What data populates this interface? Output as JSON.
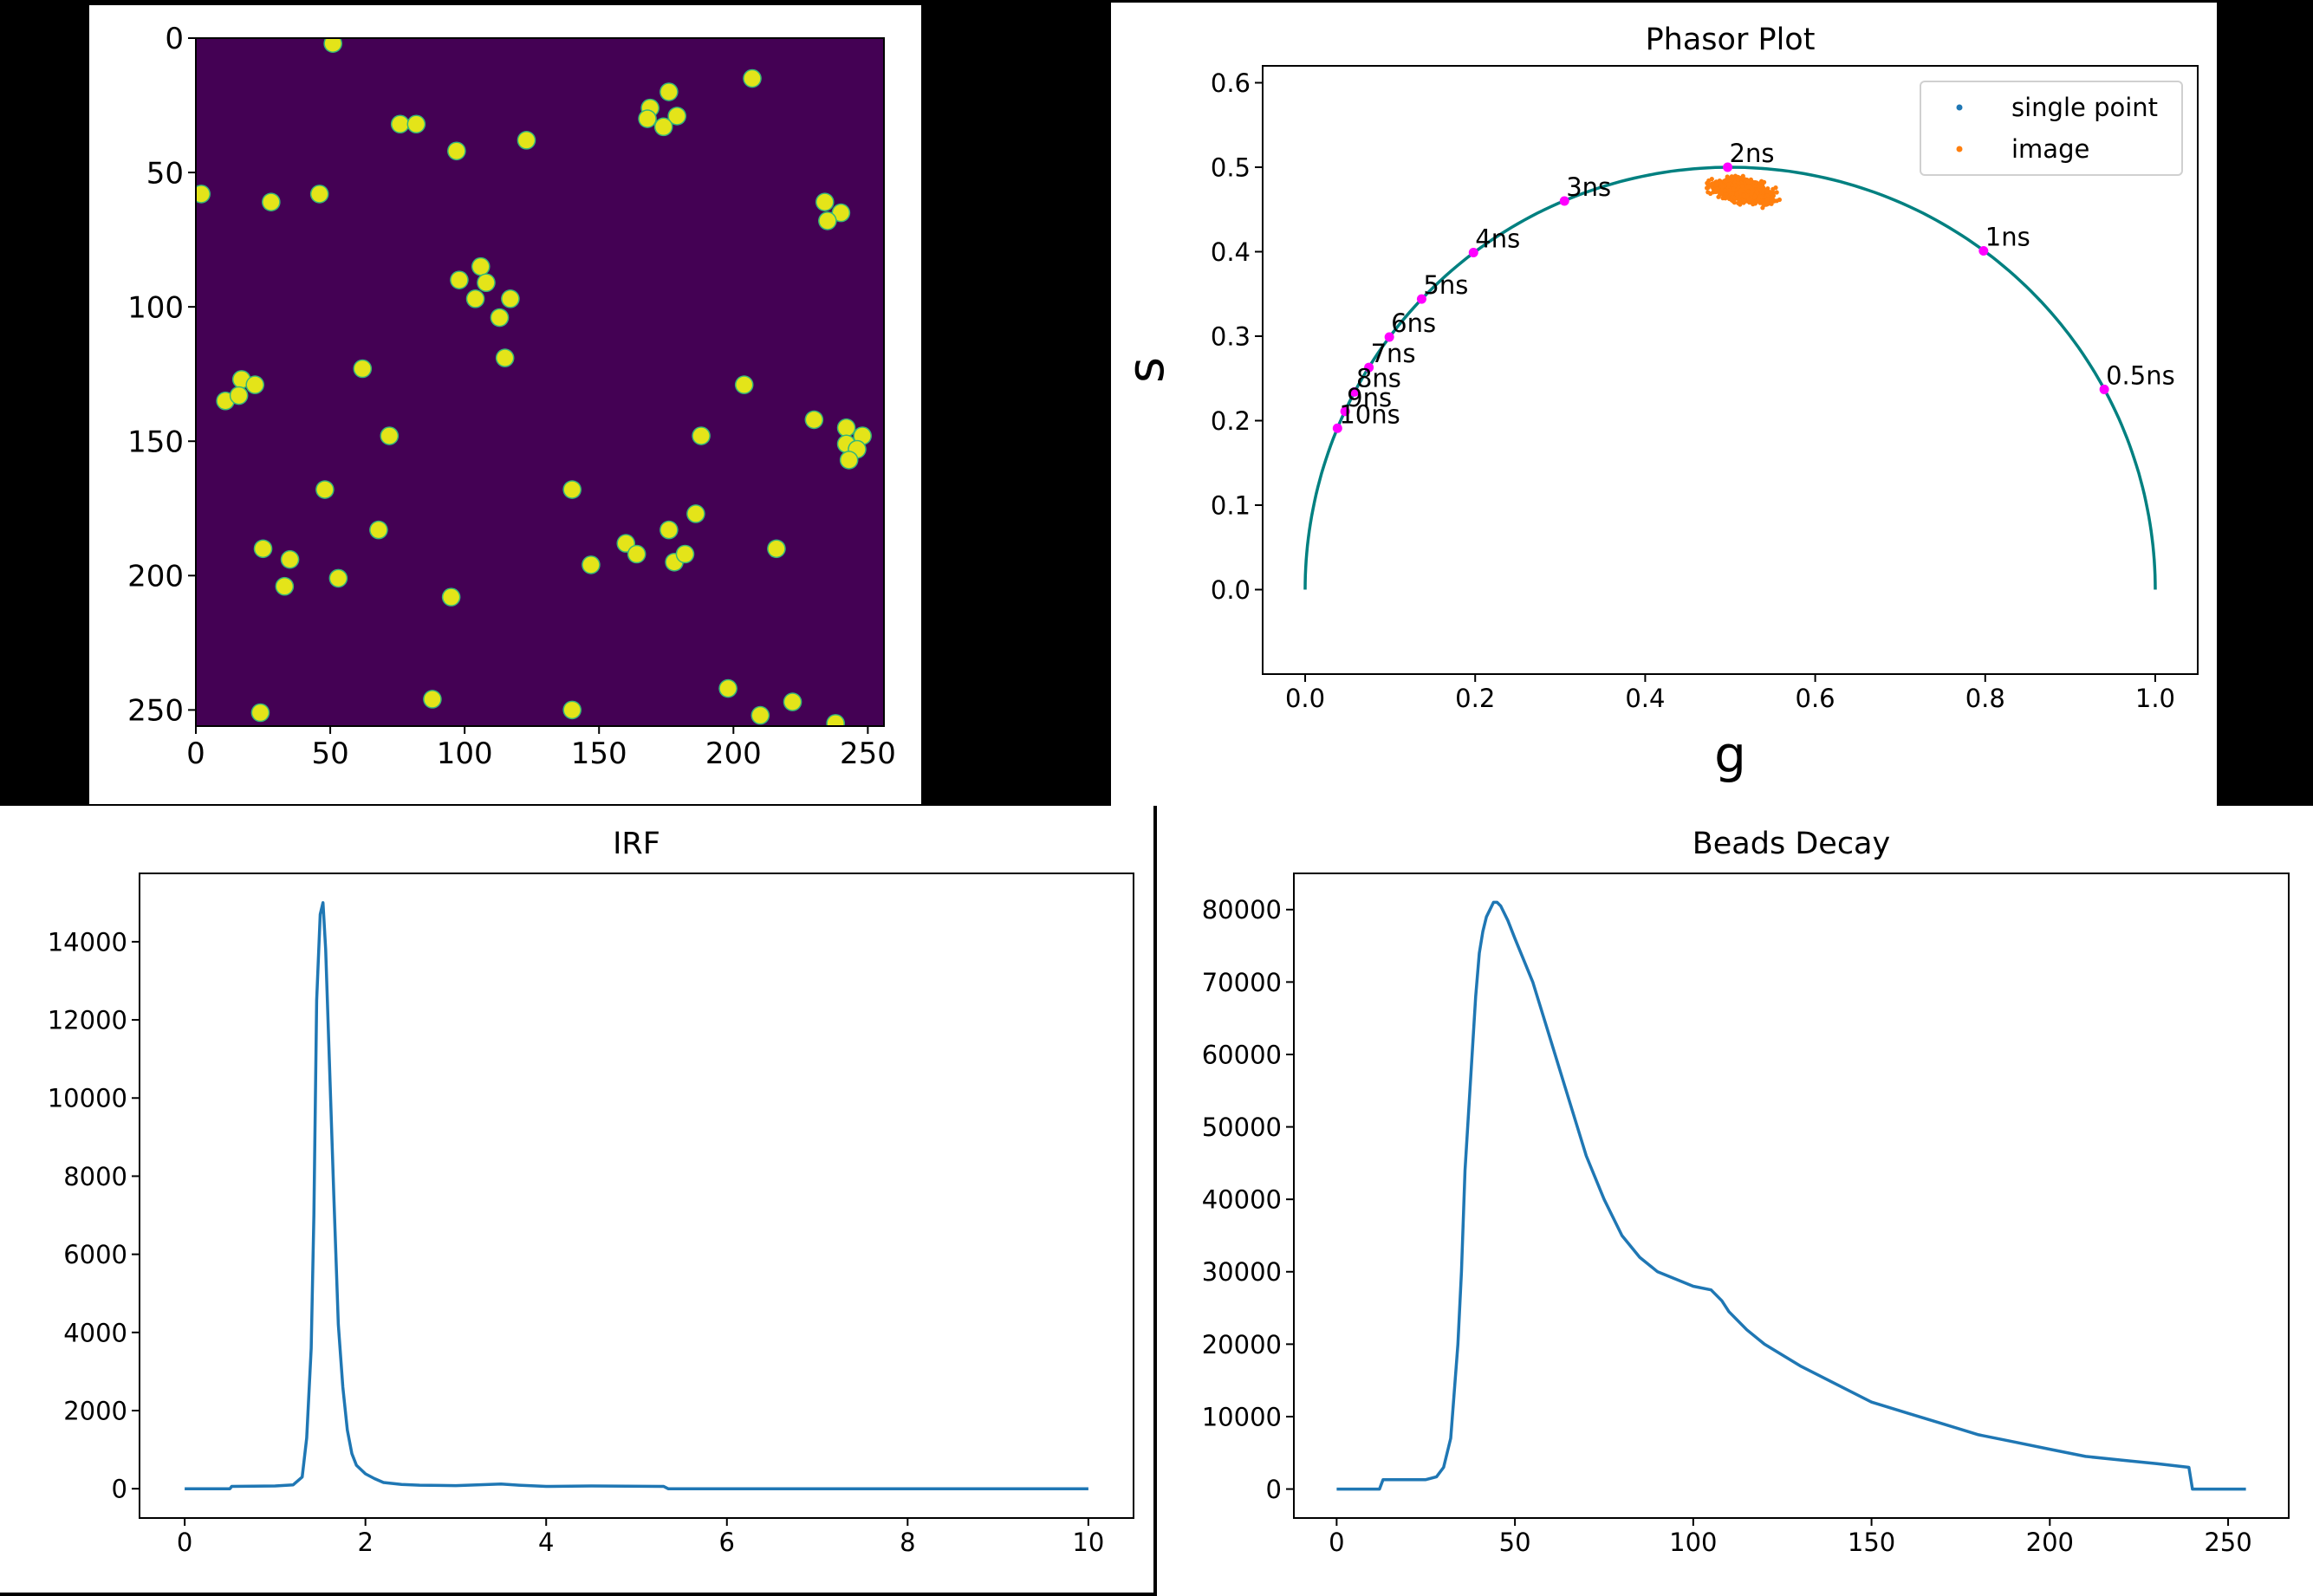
{
  "image_panel": {
    "chart_data": {
      "type": "heatmap",
      "title": "",
      "xlim": [
        0,
        256
      ],
      "ylim": [
        256,
        0
      ],
      "x_ticks": [
        "0",
        "50",
        "100",
        "150",
        "200",
        "250"
      ],
      "y_ticks": [
        "0",
        "50",
        "100",
        "150",
        "200",
        "250"
      ],
      "colormap": {
        "background": "#440154",
        "bead": "#e4e419",
        "edge": "#35b779"
      },
      "beads": [
        [
          51,
          2
        ],
        [
          207,
          15
        ],
        [
          176,
          20
        ],
        [
          169,
          26
        ],
        [
          179,
          29
        ],
        [
          168,
          30
        ],
        [
          174,
          33
        ],
        [
          76,
          32
        ],
        [
          82,
          32
        ],
        [
          97,
          42
        ],
        [
          123,
          38
        ],
        [
          2,
          58
        ],
        [
          28,
          61
        ],
        [
          46,
          58
        ],
        [
          234,
          61
        ],
        [
          240,
          65
        ],
        [
          235,
          68
        ],
        [
          106,
          85
        ],
        [
          98,
          90
        ],
        [
          108,
          91
        ],
        [
          104,
          97
        ],
        [
          117,
          97
        ],
        [
          113,
          104
        ],
        [
          115,
          119
        ],
        [
          62,
          123
        ],
        [
          17,
          127
        ],
        [
          22,
          129
        ],
        [
          204,
          129
        ],
        [
          11,
          135
        ],
        [
          16,
          133
        ],
        [
          230,
          142
        ],
        [
          242,
          145
        ],
        [
          248,
          148
        ],
        [
          242,
          151
        ],
        [
          246,
          153
        ],
        [
          243,
          157
        ],
        [
          72,
          148
        ],
        [
          188,
          148
        ],
        [
          48,
          168
        ],
        [
          140,
          168
        ],
        [
          68,
          183
        ],
        [
          160,
          188
        ],
        [
          176,
          183
        ],
        [
          186,
          177
        ],
        [
          25,
          190
        ],
        [
          35,
          194
        ],
        [
          164,
          192
        ],
        [
          178,
          195
        ],
        [
          182,
          192
        ],
        [
          147,
          196
        ],
        [
          216,
          190
        ],
        [
          53,
          201
        ],
        [
          33,
          204
        ],
        [
          95,
          208
        ],
        [
          88,
          246
        ],
        [
          198,
          242
        ],
        [
          140,
          250
        ],
        [
          24,
          251
        ],
        [
          210,
          252
        ],
        [
          222,
          247
        ],
        [
          238,
          255
        ]
      ]
    }
  },
  "phasor_panel": {
    "chart_data": {
      "type": "scatter",
      "title": "Phasor Plot",
      "xlabel": "g",
      "ylabel": "s",
      "xlim": [
        -0.05,
        1.05
      ],
      "ylim": [
        -0.1,
        0.62
      ],
      "x_ticks": [
        "0.0",
        "0.2",
        "0.4",
        "0.6",
        "0.8",
        "1.0"
      ],
      "y_ticks": [
        "0.0",
        "0.1",
        "0.2",
        "0.3",
        "0.4",
        "0.5",
        "0.6"
      ],
      "legend_position": "top-right",
      "legend": [
        {
          "label": "single point",
          "color": "#1f77b4"
        },
        {
          "label": "image",
          "color": "#ff7f0e"
        }
      ],
      "semicircle": {
        "center": [
          0.5,
          0
        ],
        "radius": 0.5,
        "color": "#008080"
      },
      "lifetime_markers": [
        {
          "label": "0.5ns",
          "g": 0.94,
          "s": 0.237
        },
        {
          "label": "1ns",
          "g": 0.798,
          "s": 0.401
        },
        {
          "label": "2ns",
          "g": 0.497,
          "s": 0.5
        },
        {
          "label": "3ns",
          "g": 0.305,
          "s": 0.46
        },
        {
          "label": "4ns",
          "g": 0.198,
          "s": 0.399
        },
        {
          "label": "5ns",
          "g": 0.137,
          "s": 0.344
        },
        {
          "label": "6ns",
          "g": 0.099,
          "s": 0.299
        },
        {
          "label": "7ns",
          "g": 0.075,
          "s": 0.263
        },
        {
          "label": "8ns",
          "g": 0.058,
          "s": 0.234
        },
        {
          "label": "9ns",
          "g": 0.047,
          "s": 0.211
        },
        {
          "label": "10ns",
          "g": 0.038,
          "s": 0.191
        }
      ],
      "marker_color": "#ff00ff",
      "image_cluster": {
        "g_center": 0.515,
        "s_center": 0.472,
        "g_spread": 0.04,
        "s_spread": 0.014,
        "g_range": [
          0.42,
          0.56
        ],
        "s_range": [
          0.44,
          0.51
        ]
      }
    }
  },
  "irf_panel": {
    "chart_data": {
      "type": "line",
      "title": "IRF",
      "xlim": [
        -0.5,
        10.5
      ],
      "ylim": [
        -750,
        15750
      ],
      "x_ticks": [
        "0",
        "2",
        "4",
        "6",
        "8",
        "10"
      ],
      "y_ticks": [
        "0",
        "2000",
        "4000",
        "6000",
        "8000",
        "10000",
        "12000",
        "14000"
      ],
      "x": [
        0,
        0.5,
        0.52,
        1.0,
        1.2,
        1.3,
        1.35,
        1.4,
        1.43,
        1.46,
        1.5,
        1.53,
        1.56,
        1.6,
        1.65,
        1.7,
        1.75,
        1.8,
        1.85,
        1.9,
        2.0,
        2.1,
        2.2,
        2.4,
        2.6,
        3.0,
        3.5,
        3.7,
        4.0,
        4.5,
        5.3,
        5.35,
        6,
        7,
        8,
        9,
        10
      ],
      "y": [
        0,
        0,
        60,
        70,
        100,
        300,
        1300,
        3600,
        7000,
        12500,
        14700,
        15000,
        13800,
        11000,
        7500,
        4200,
        2600,
        1500,
        900,
        600,
        380,
        260,
        160,
        110,
        90,
        80,
        120,
        90,
        60,
        70,
        60,
        0,
        0,
        0,
        0,
        0,
        0
      ],
      "color": "#1f77b4"
    }
  },
  "decay_panel": {
    "chart_data": {
      "type": "line",
      "title": "Beads Decay",
      "xlim": [
        -12,
        267
      ],
      "ylim": [
        -4000,
        85000
      ],
      "x_ticks": [
        "0",
        "50",
        "100",
        "150",
        "200",
        "250"
      ],
      "y_ticks": [
        "0",
        "10000",
        "20000",
        "30000",
        "40000",
        "50000",
        "60000",
        "70000",
        "80000"
      ],
      "x": [
        0,
        12,
        13,
        20,
        25,
        28,
        30,
        32,
        34,
        35,
        36,
        37,
        38,
        39,
        40,
        41,
        42,
        43,
        44,
        45,
        46,
        48,
        50,
        55,
        60,
        65,
        70,
        75,
        80,
        85,
        90,
        95,
        100,
        105,
        108,
        110,
        115,
        120,
        130,
        140,
        150,
        160,
        170,
        180,
        190,
        200,
        210,
        220,
        230,
        239,
        240,
        255
      ],
      "y": [
        0,
        0,
        1300,
        1300,
        1300,
        1700,
        3000,
        7000,
        20000,
        30000,
        44000,
        52000,
        60000,
        68000,
        74000,
        77000,
        79000,
        80000,
        81000,
        81000,
        80500,
        78500,
        76000,
        70000,
        62000,
        54000,
        46000,
        40000,
        35000,
        32000,
        30000,
        29000,
        28000,
        27500,
        26000,
        24500,
        22000,
        20000,
        17000,
        14500,
        12000,
        10500,
        9000,
        7500,
        6500,
        5500,
        4500,
        4000,
        3500,
        3000,
        0,
        0
      ],
      "color": "#1f77b4"
    }
  }
}
